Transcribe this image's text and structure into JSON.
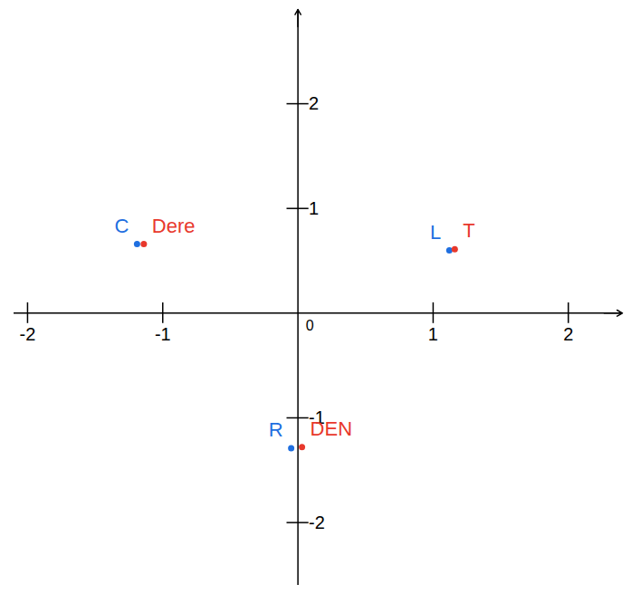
{
  "chart_data": {
    "type": "scatter",
    "xlim": [
      -2.1,
      2.4
    ],
    "ylim": [
      -2.6,
      2.9
    ],
    "xticks": [
      -2,
      -1,
      0,
      1,
      2
    ],
    "yticks": [
      -2,
      -1,
      1,
      2
    ],
    "series": [
      {
        "color": "#1f6fe0",
        "labels": [
          "C",
          "L",
          "R"
        ],
        "x": [
          -1.19,
          1.12,
          -0.05
        ],
        "values": [
          0.66,
          0.6,
          -1.29
        ]
      },
      {
        "color": "#e8382c",
        "labels": [
          "Dere",
          "T",
          "DEN"
        ],
        "x": [
          -1.14,
          1.16,
          0.03
        ],
        "values": [
          0.66,
          0.61,
          -1.28
        ]
      }
    ]
  }
}
